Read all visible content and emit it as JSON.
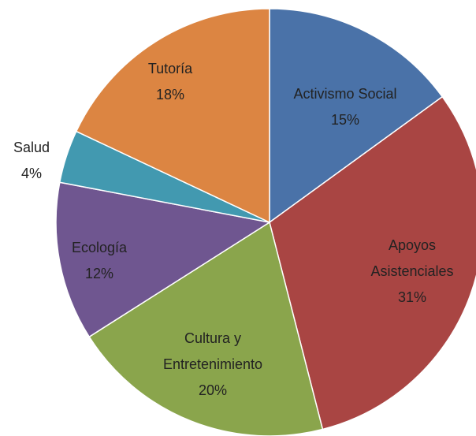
{
  "chart_data": {
    "type": "pie",
    "categories": [
      "Activismo Social",
      "Apoyos\nAsistenciales",
      "Cultura y\nEntretenimiento",
      "Ecología",
      "Salud",
      "Tutoría"
    ],
    "values": [
      15,
      31,
      20,
      12,
      4,
      18
    ],
    "value_labels": [
      "15%",
      "31%",
      "20%",
      "12%",
      "4%",
      "18%"
    ],
    "colors": [
      "#4a72a8",
      "#a94543",
      "#8aa54c",
      "#6f5690",
      "#4299b0",
      "#dc8542"
    ]
  }
}
